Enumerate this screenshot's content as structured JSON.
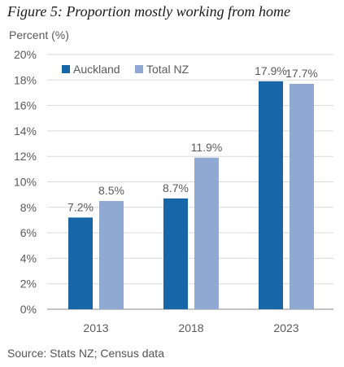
{
  "title": "Figure 5: Proportion mostly working from home",
  "source": "Source: Stats NZ; Census data",
  "chart_data": {
    "type": "bar",
    "title": "Figure 5: Proportion mostly working from home",
    "ylabel": "Percent (%)",
    "xlabel": "",
    "categories": [
      "2013",
      "2018",
      "2023"
    ],
    "series": [
      {
        "name": "Auckland",
        "values": [
          7.2,
          8.7,
          17.9
        ],
        "labels": [
          "7.2%",
          "8.7%",
          "17.9%"
        ],
        "color": "#1766a8"
      },
      {
        "name": "Total NZ",
        "values": [
          8.5,
          11.9,
          17.7
        ],
        "labels": [
          "8.5%",
          "11.9%",
          "17.7%"
        ],
        "color": "#8fa9d3"
      }
    ],
    "ylim": [
      0,
      20
    ],
    "yticks": [
      0,
      2,
      4,
      6,
      8,
      10,
      12,
      14,
      16,
      18,
      20
    ],
    "ytick_labels": [
      "0%",
      "2%",
      "4%",
      "6%",
      "8%",
      "10%",
      "12%",
      "14%",
      "16%",
      "18%",
      "20%"
    ],
    "grid": true,
    "legend_position": "top-left"
  }
}
